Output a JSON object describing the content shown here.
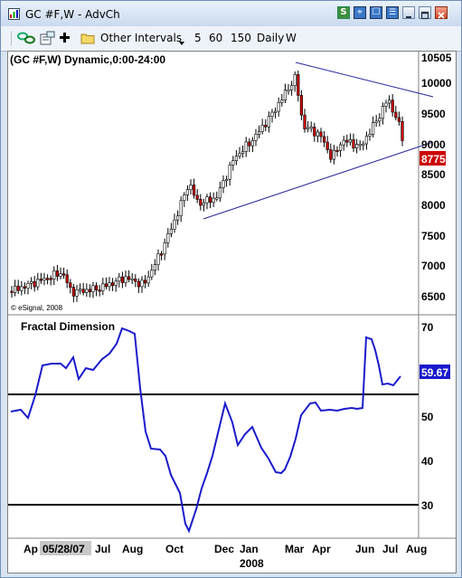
{
  "window": {
    "title": "GC #F,W - AdvCh",
    "title_buttons": [
      "S",
      "⌖",
      "☐",
      "☰",
      "minimize",
      "maximize",
      "close"
    ]
  },
  "toolbar": {
    "other_intervals_label": "Other Intervals",
    "intervals": [
      "5",
      "60",
      "150",
      "Daily",
      "W"
    ]
  },
  "price_panel": {
    "header": "(GC #F,W) Dynamic,0:00-24:00",
    "axis_labels": [
      "10505",
      "10000",
      "9500",
      "9000",
      "8500",
      "8000",
      "7500",
      "7000",
      "6500"
    ],
    "last_price": "8775",
    "last_price_color": "#cc0000",
    "watermark": "© eSignal, 2008"
  },
  "indicator_panel": {
    "title": "Fractal Dimension",
    "axis_labels": [
      "70",
      "60",
      "50",
      "40",
      "30"
    ],
    "current_value": "59.67",
    "current_value_color": "#1a1acc",
    "line_color": "#1a1acc"
  },
  "time_axis": {
    "labels": [
      "Ap",
      "05/28/07",
      "Jul",
      "Aug",
      "Oct",
      "Dec",
      "Jan",
      "Mar",
      "Apr",
      "Jun",
      "Jul",
      "Aug"
    ],
    "year_label": "2008"
  }
}
